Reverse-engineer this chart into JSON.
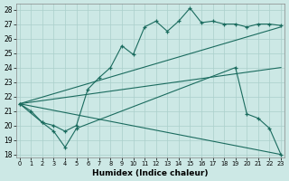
{
  "xlabel": "Humidex (Indice chaleur)",
  "xlim": [
    -0.3,
    23.3
  ],
  "ylim": [
    17.8,
    28.4
  ],
  "yticks": [
    18,
    19,
    20,
    21,
    22,
    23,
    24,
    25,
    26,
    27,
    28
  ],
  "xticks": [
    0,
    1,
    2,
    3,
    4,
    5,
    6,
    7,
    8,
    9,
    10,
    11,
    12,
    13,
    14,
    15,
    16,
    17,
    18,
    19,
    20,
    21,
    22,
    23
  ],
  "bg_color": "#cce8e5",
  "line_color": "#1a6b5e",
  "grid_color": "#aacfcb",
  "line1_x": [
    0,
    1,
    2,
    3,
    4,
    5,
    6,
    7,
    8,
    9,
    10,
    11,
    12,
    13,
    14,
    15,
    16,
    17,
    18,
    19,
    20,
    21,
    22,
    23
  ],
  "line1_y": [
    21.5,
    21.0,
    20.2,
    20.0,
    19.6,
    20.0,
    22.5,
    23.3,
    24.0,
    25.5,
    24.9,
    26.8,
    27.2,
    26.5,
    27.2,
    28.1,
    27.1,
    27.2,
    27.0,
    27.0,
    26.8,
    27.0,
    27.0,
    26.9
  ],
  "line2_x": [
    0,
    23
  ],
  "line2_y": [
    21.5,
    26.8
  ],
  "line3_x": [
    0,
    23
  ],
  "line3_y": [
    21.5,
    24.0
  ],
  "line4_x": [
    0,
    2,
    3,
    4,
    5,
    19,
    20,
    21,
    22,
    23
  ],
  "line4_y": [
    21.5,
    20.2,
    19.6,
    18.5,
    19.8,
    24.0,
    20.8,
    20.5,
    19.8,
    18.0
  ],
  "line5_x": [
    0,
    23
  ],
  "line5_y": [
    21.5,
    18.0
  ]
}
